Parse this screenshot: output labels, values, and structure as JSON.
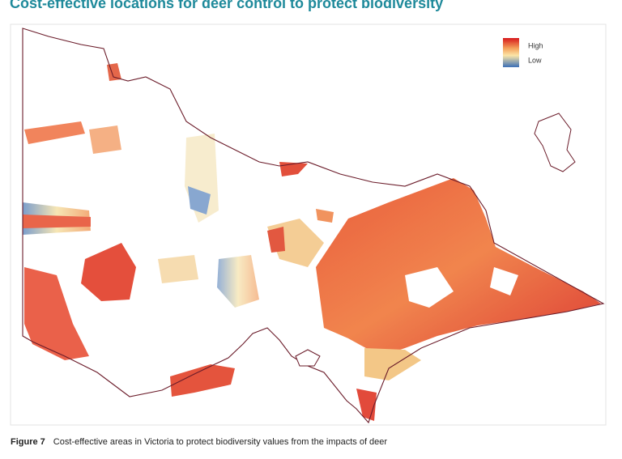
{
  "header": {
    "title": "Cost-effective locations for deer control to protect biodiversity"
  },
  "legend": {
    "high": "High",
    "low": "Low"
  },
  "caption": {
    "label": "Figure 7",
    "text": "Cost-effective areas in Victoria to protect biodiversity values from the impacts of deer"
  }
}
